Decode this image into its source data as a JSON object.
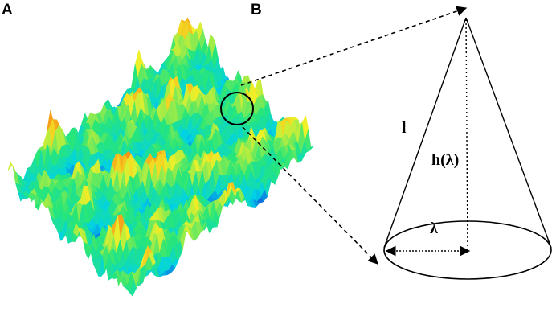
{
  "panels": {
    "a": {
      "label": "A"
    },
    "b": {
      "label": "B",
      "slant_label": "l",
      "height_label": "h(λ)",
      "radius_label": "λ"
    }
  }
}
